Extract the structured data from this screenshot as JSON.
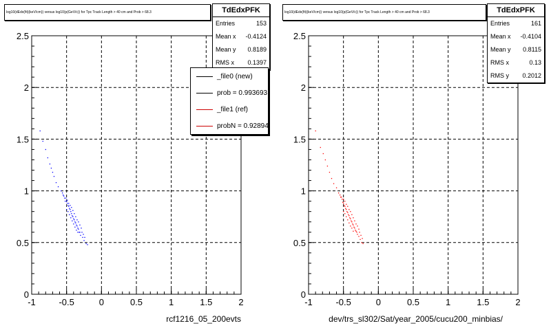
{
  "chart_data": [
    {
      "type": "scatter",
      "title": "log10(dEdx(fit)(keV/cm)) versus log10(p(GeV/c)) for Tpc Track Length > 40 cm and Prob > 68.3",
      "xlabel": "rcf1216_05_200evts",
      "xlim": [
        -1,
        2
      ],
      "ylim": [
        0,
        2.5
      ],
      "xticks": [
        "-1",
        "-0.5",
        "0",
        "0.5",
        "1",
        "1.5",
        "2"
      ],
      "yticks": [
        "0",
        "0.5",
        "1",
        "1.5",
        "2",
        "2.5"
      ],
      "grid": true,
      "marker_color": "#0000ff",
      "stats": {
        "name": "TdEdxPFK",
        "rows": [
          {
            "label": "Entries",
            "value": "153"
          },
          {
            "label": "Mean x",
            "value": "-0.4124"
          },
          {
            "label": "Mean y",
            "value": "0.8189"
          },
          {
            "label": "RMS x",
            "value": "0.1397"
          }
        ]
      },
      "legend": [
        {
          "label": "_file0 (new)",
          "color": "#000000"
        },
        {
          "label": "prob = 0.993693",
          "color": "#000000"
        },
        {
          "label": "_file1 (ref)",
          "color": "#cc0000"
        },
        {
          "label": "probN = 0.928942",
          "color": "#cc0000"
        }
      ],
      "points": [
        [
          -0.88,
          1.58
        ],
        [
          -0.84,
          1.48
        ],
        [
          -0.8,
          1.4
        ],
        [
          -0.77,
          1.32
        ],
        [
          -0.74,
          1.26
        ],
        [
          -0.72,
          1.22
        ],
        [
          -0.7,
          1.18
        ],
        [
          -0.68,
          1.14
        ],
        [
          -0.65,
          1.08
        ],
        [
          -0.62,
          1.04
        ],
        [
          -0.58,
          1.0
        ],
        [
          -0.55,
          0.96
        ],
        [
          -0.53,
          0.93
        ],
        [
          -0.5,
          0.9
        ],
        [
          -0.48,
          0.86
        ],
        [
          -0.46,
          0.83
        ],
        [
          -0.44,
          0.8
        ],
        [
          -0.42,
          0.76
        ],
        [
          -0.4,
          0.73
        ],
        [
          -0.38,
          0.7
        ],
        [
          -0.36,
          0.67
        ],
        [
          -0.34,
          0.64
        ],
        [
          -0.32,
          0.6
        ],
        [
          -0.3,
          0.57
        ],
        [
          -0.27,
          0.55
        ],
        [
          -0.25,
          0.52
        ],
        [
          -0.22,
          0.49
        ],
        [
          -0.2,
          0.48
        ],
        [
          -0.52,
          0.9
        ],
        [
          -0.49,
          0.88
        ],
        [
          -0.47,
          0.85
        ],
        [
          -0.45,
          0.82
        ],
        [
          -0.43,
          0.78
        ],
        [
          -0.41,
          0.75
        ],
        [
          -0.39,
          0.72
        ],
        [
          -0.37,
          0.69
        ],
        [
          -0.35,
          0.66
        ],
        [
          -0.33,
          0.63
        ],
        [
          -0.31,
          0.6
        ],
        [
          -0.5,
          0.82
        ],
        [
          -0.48,
          0.8
        ],
        [
          -0.46,
          0.77
        ],
        [
          -0.44,
          0.74
        ],
        [
          -0.42,
          0.71
        ],
        [
          -0.4,
          0.68
        ],
        [
          -0.38,
          0.65
        ],
        [
          -0.36,
          0.62
        ],
        [
          -0.34,
          0.6
        ],
        [
          -0.56,
          0.98
        ],
        [
          -0.54,
          0.95
        ],
        [
          -0.51,
          0.93
        ],
        [
          -0.49,
          0.91
        ],
        [
          -0.47,
          0.88
        ],
        [
          -0.45,
          0.86
        ],
        [
          -0.43,
          0.84
        ],
        [
          -0.41,
          0.81
        ],
        [
          -0.39,
          0.78
        ],
        [
          -0.37,
          0.75
        ],
        [
          -0.35,
          0.72
        ],
        [
          -0.33,
          0.7
        ],
        [
          -0.31,
          0.67
        ],
        [
          -0.29,
          0.64
        ],
        [
          -0.28,
          0.6
        ],
        [
          -0.26,
          0.58
        ],
        [
          -0.24,
          0.55
        ]
      ]
    },
    {
      "type": "scatter",
      "title": "log10(dEdx(fit)(keV/cm)) versus log10(p(GeV/c)) for Tpc Track Length > 40 cm and Prob > 68.3",
      "xlabel": "dev/trs_sl302/Sat/year_2005/cucu200_minbias/",
      "xlim": [
        -1,
        2
      ],
      "ylim": [
        0,
        2.5
      ],
      "xticks": [
        "-1",
        "-0.5",
        "0",
        "0.5",
        "1",
        "1.5",
        "2"
      ],
      "yticks": [
        "0",
        "0.5",
        "1",
        "1.5",
        "2",
        "2.5"
      ],
      "grid": true,
      "marker_color": "#ff0000",
      "stats": {
        "name": "TdEdxPFK",
        "rows": [
          {
            "label": "Entries",
            "value": "161"
          },
          {
            "label": "Mean x",
            "value": "-0.4104"
          },
          {
            "label": "Mean y",
            "value": "0.8115"
          },
          {
            "label": "RMS x",
            "value": "0.13"
          },
          {
            "label": "RMS y",
            "value": "0.2012"
          }
        ]
      },
      "points": [
        [
          -0.9,
          1.58
        ],
        [
          -0.83,
          1.42
        ],
        [
          -0.79,
          1.36
        ],
        [
          -0.76,
          1.3
        ],
        [
          -0.73,
          1.24
        ],
        [
          -0.7,
          1.18
        ],
        [
          -0.67,
          1.12
        ],
        [
          -0.64,
          1.07
        ],
        [
          -0.6,
          1.03
        ],
        [
          -0.57,
          0.98
        ],
        [
          -0.54,
          0.94
        ],
        [
          -0.52,
          0.92
        ],
        [
          -0.5,
          0.88
        ],
        [
          -0.48,
          0.85
        ],
        [
          -0.46,
          0.82
        ],
        [
          -0.44,
          0.79
        ],
        [
          -0.42,
          0.76
        ],
        [
          -0.4,
          0.73
        ],
        [
          -0.38,
          0.7
        ],
        [
          -0.36,
          0.67
        ],
        [
          -0.34,
          0.64
        ],
        [
          -0.32,
          0.61
        ],
        [
          -0.3,
          0.58
        ],
        [
          -0.28,
          0.56
        ],
        [
          -0.26,
          0.53
        ],
        [
          -0.24,
          0.5
        ],
        [
          -0.22,
          0.49
        ],
        [
          -0.51,
          0.89
        ],
        [
          -0.49,
          0.86
        ],
        [
          -0.47,
          0.83
        ],
        [
          -0.45,
          0.8
        ],
        [
          -0.43,
          0.77
        ],
        [
          -0.41,
          0.74
        ],
        [
          -0.39,
          0.71
        ],
        [
          -0.37,
          0.68
        ],
        [
          -0.35,
          0.65
        ],
        [
          -0.33,
          0.62
        ],
        [
          -0.31,
          0.6
        ],
        [
          -0.5,
          0.8
        ],
        [
          -0.48,
          0.78
        ],
        [
          -0.46,
          0.75
        ],
        [
          -0.44,
          0.72
        ],
        [
          -0.42,
          0.69
        ],
        [
          -0.4,
          0.66
        ],
        [
          -0.38,
          0.64
        ],
        [
          -0.36,
          0.61
        ],
        [
          -0.55,
          0.96
        ],
        [
          -0.53,
          0.94
        ],
        [
          -0.5,
          0.92
        ],
        [
          -0.48,
          0.9
        ],
        [
          -0.46,
          0.87
        ],
        [
          -0.44,
          0.85
        ],
        [
          -0.42,
          0.82
        ],
        [
          -0.4,
          0.8
        ],
        [
          -0.38,
          0.77
        ],
        [
          -0.36,
          0.74
        ],
        [
          -0.34,
          0.71
        ],
        [
          -0.32,
          0.68
        ],
        [
          -0.3,
          0.66
        ],
        [
          -0.28,
          0.63
        ],
        [
          -0.27,
          0.6
        ],
        [
          -0.25,
          0.57
        ],
        [
          -0.23,
          0.54
        ]
      ]
    }
  ]
}
